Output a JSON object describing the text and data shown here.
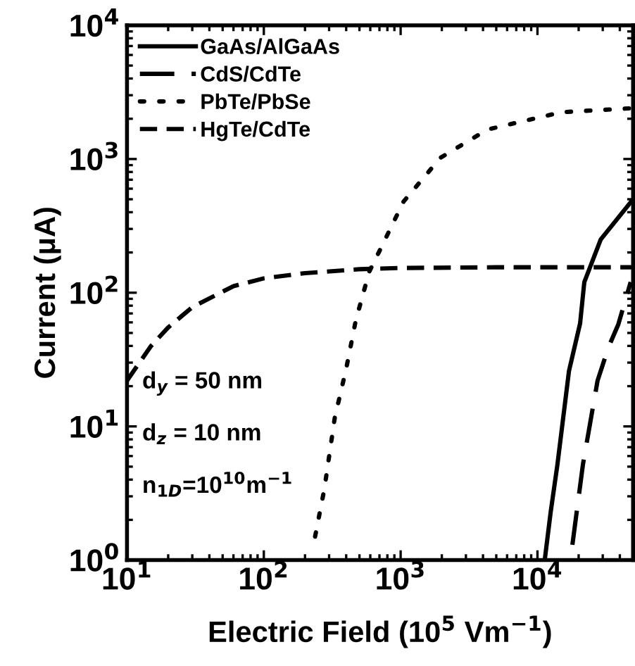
{
  "chart_data": {
    "type": "line",
    "xlabel": "Electric Field (10$^{5}$ Vm$^{−1}$)",
    "ylabel": "Current (μA)",
    "log": "xy",
    "grid": false,
    "legend": "top left",
    "xlim": [
      10,
      50000
    ],
    "ylim": [
      1,
      10000
    ],
    "xticks": [
      {
        "value": 10,
        "label": "10$^{1}$"
      },
      {
        "value": 100,
        "label": "10$^{2}$"
      },
      {
        "value": 1000,
        "label": "10$^{3}$"
      },
      {
        "value": 10000,
        "label": "10$^{4}$"
      }
    ],
    "yticks": [
      {
        "value": 1,
        "label": "10$^{0}$"
      },
      {
        "value": 10,
        "label": "10$^{1}$"
      },
      {
        "value": 100,
        "label": "10$^{2}$"
      },
      {
        "value": 1000,
        "label": "10$^{3}$"
      },
      {
        "value": 10000,
        "label": "10$^{4}$"
      }
    ],
    "series": [
      {
        "name": "GaAs/AlGaAs",
        "color": "#000000",
        "line_style": "solid",
        "x": [
          11300,
          12500,
          14000,
          17000,
          20500,
          22000,
          29000,
          50000
        ],
        "values": [
          1,
          2.3,
          5.2,
          26,
          59,
          120,
          250,
          500
        ]
      },
      {
        "name": "CdS/CdTe",
        "color": "#000000",
        "line_style": "dashed",
        "x": [
          18000,
          21500,
          27500,
          33000,
          39000,
          48000
        ],
        "values": [
          1.3,
          5.2,
          22,
          39,
          58,
          120
        ]
      },
      {
        "name": "PbTe/PbSe",
        "color": "#000000",
        "line_style": "dotted",
        "x": [
          237,
          277,
          330,
          400,
          470,
          590,
          700,
          1050,
          1950,
          4300,
          15000,
          50000
        ],
        "values": [
          1.5,
          3.4,
          11.6,
          27,
          62,
          144,
          205,
          480,
          1020,
          1660,
          2240,
          2400
        ]
      },
      {
        "name": "HgTe/CdTe",
        "color": "#000000",
        "line_style": "dashed",
        "x": [
          10,
          15,
          20,
          30,
          60,
          100,
          200,
          500,
          1000,
          5000,
          50000
        ],
        "values": [
          22,
          40,
          55,
          78,
          112,
          128,
          140,
          150,
          153,
          155,
          155
        ]
      }
    ],
    "annotations": [
      "d$_{y}$ = 50 nm",
      "d$_{z}$ = 10 nm",
      "n$_{1D}$=10$^{10}$m$^{−1}$"
    ]
  }
}
